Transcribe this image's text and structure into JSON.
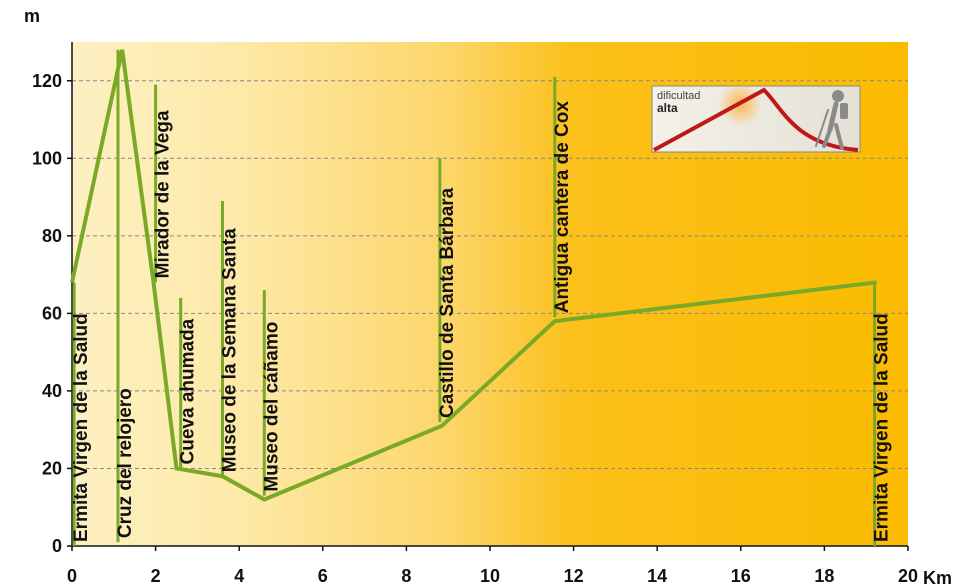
{
  "chart_data": {
    "type": "area",
    "title": "",
    "xlabel": "Km",
    "ylabel": "m",
    "xlim": [
      0,
      20
    ],
    "ylim": [
      0,
      130
    ],
    "x_ticks": [
      0,
      2,
      4,
      6,
      8,
      10,
      12,
      14,
      16,
      18,
      20
    ],
    "y_ticks": [
      0,
      20,
      40,
      60,
      80,
      100,
      120
    ],
    "grid": "horizontal-dashed",
    "colors": {
      "profile": "#7aa928",
      "background_start": "#fdf0c0",
      "background_end": "#fbbb00",
      "grid": "#888888",
      "axis": "#111111"
    },
    "profile": [
      {
        "x": 0.0,
        "y": 68
      },
      {
        "x": 1.2,
        "y": 128
      },
      {
        "x": 1.95,
        "y": 68
      },
      {
        "x": 2.5,
        "y": 20
      },
      {
        "x": 3.6,
        "y": 18
      },
      {
        "x": 4.6,
        "y": 12
      },
      {
        "x": 8.85,
        "y": 31
      },
      {
        "x": 11.55,
        "y": 58
      },
      {
        "x": 19.25,
        "y": 68
      }
    ],
    "waypoints": [
      {
        "label": "Ermita Virgen de la Salud",
        "x": 0.05,
        "y_top": 68,
        "y_bottom": 0
      },
      {
        "label": "Cruz del relojero",
        "x": 1.1,
        "y_top": 128,
        "y_bottom": 1
      },
      {
        "label": "Mirador de la Vega",
        "x": 2.0,
        "y_top": 119,
        "y_bottom": 68
      },
      {
        "label": "Cueva ahumada",
        "x": 2.6,
        "y_top": 64,
        "y_bottom": 20
      },
      {
        "label": "Museo de la Semana Santa",
        "x": 3.6,
        "y_top": 89,
        "y_bottom": 18
      },
      {
        "label": "Museo del cáñamo",
        "x": 4.6,
        "y_top": 66,
        "y_bottom": 13
      },
      {
        "label": "Castillo de Santa Bárbara",
        "x": 8.8,
        "y_top": 100,
        "y_bottom": 32
      },
      {
        "label": "Antigua cantera de Cox",
        "x": 11.55,
        "y_top": 121,
        "y_bottom": 59
      },
      {
        "label": "Ermita Virgen de la Salud",
        "x": 19.2,
        "y_top": 68,
        "y_bottom": 0
      }
    ],
    "difficulty_badge": {
      "line1": "dificultad",
      "line2": "alta"
    }
  }
}
